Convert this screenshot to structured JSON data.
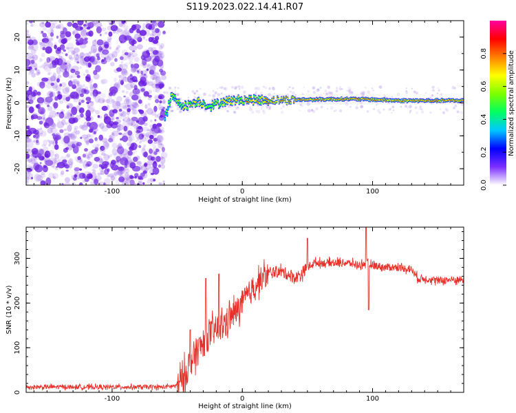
{
  "title": "S119.2023.022.14.41.R07",
  "colors": {
    "snr_line": "#e8302a",
    "noise_dots": "#9c6ae8",
    "noise_dots_dark": "#6b1fe0",
    "axis": "#000000",
    "background": "#ffffff"
  },
  "chart_data": [
    {
      "type": "heatmap",
      "name": "spectrogram",
      "xlabel": "Height of straight line (km)",
      "ylabel": "Frequency (Hz)",
      "xlim": [
        -166,
        170
      ],
      "ylim": [
        -25,
        25
      ],
      "x_ticks": [
        -100,
        0,
        100
      ],
      "y_ticks": [
        -20,
        -10,
        0,
        10,
        20
      ],
      "grid": false,
      "colorbar": {
        "label": "Normalized spectral amplitude",
        "range": [
          0,
          1
        ],
        "ticks": [
          0.0,
          0.2,
          0.4,
          0.6,
          0.8
        ],
        "tick_labels": [
          "0.0",
          "0.2",
          "0.4",
          "0.6",
          "0.8"
        ],
        "colormap": [
          "#ffffff",
          "#7b2fff",
          "#0000ff",
          "#00c8ff",
          "#00ff60",
          "#7cff00",
          "#ffff00",
          "#ff8000",
          "#ff0000",
          "#ff00a0"
        ]
      },
      "regions": [
        {
          "description_type": "scattered_noise",
          "x": [
            -166,
            -60
          ],
          "y": [
            -25,
            24
          ],
          "amplitude": 0.15
        },
        {
          "description_type": "signal_band",
          "x": [
            -60,
            170
          ],
          "y_center": 0.8,
          "amplitude_peak": 0.9
        }
      ],
      "signal_ridge": [
        {
          "x": -60,
          "y": -5,
          "a": 0.5
        },
        {
          "x": -55,
          "y": 2,
          "a": 0.55
        },
        {
          "x": -45,
          "y": -1,
          "a": 0.6
        },
        {
          "x": -35,
          "y": 0.5,
          "a": 0.65
        },
        {
          "x": -25,
          "y": -1,
          "a": 0.6
        },
        {
          "x": -15,
          "y": 0.5,
          "a": 0.65
        },
        {
          "x": 0,
          "y": 1,
          "a": 0.7
        },
        {
          "x": 20,
          "y": 0.8,
          "a": 0.8
        },
        {
          "x": 50,
          "y": 1,
          "a": 0.8
        },
        {
          "x": 80,
          "y": 1.2,
          "a": 0.85
        },
        {
          "x": 100,
          "y": 1,
          "a": 0.8
        },
        {
          "x": 120,
          "y": 0.7,
          "a": 0.85
        },
        {
          "x": 170,
          "y": 0.7,
          "a": 0.85
        }
      ]
    },
    {
      "type": "line",
      "name": "snr",
      "xlabel": "Height of straight line (km)",
      "ylabel": "SNR (10 * v/v)",
      "xlim": [
        -166,
        170
      ],
      "ylim": [
        0,
        370
      ],
      "x_ticks": [
        -100,
        0,
        100
      ],
      "y_ticks": [
        0,
        100,
        200,
        300
      ],
      "grid": false,
      "series": [
        {
          "x": [
            -166,
            -140,
            -120,
            -100,
            -80,
            -60,
            -50,
            -45,
            -40,
            -35,
            -30,
            -25,
            -20,
            -15,
            -10,
            -5,
            0,
            5,
            10,
            15,
            20,
            25,
            30,
            35,
            40,
            45,
            50,
            55,
            60,
            70,
            80,
            90,
            95,
            100,
            110,
            120,
            130,
            135,
            140,
            150,
            160,
            170
          ],
          "values": [
            12,
            12,
            12,
            12,
            12,
            12,
            15,
            30,
            70,
            90,
            110,
            130,
            140,
            150,
            165,
            180,
            200,
            220,
            240,
            255,
            265,
            270,
            270,
            265,
            255,
            265,
            280,
            290,
            290,
            290,
            290,
            285,
            290,
            285,
            280,
            280,
            275,
            255,
            255,
            250,
            252,
            252
          ],
          "spikes": [
            {
              "x": -40,
              "y": 140
            },
            {
              "x": -28,
              "y": 255
            },
            {
              "x": -18,
              "y": 265
            },
            {
              "x": 50,
              "y": 345
            },
            {
              "x": 95,
              "y": 370
            },
            {
              "x": 97,
              "y": 185
            }
          ]
        }
      ]
    }
  ]
}
